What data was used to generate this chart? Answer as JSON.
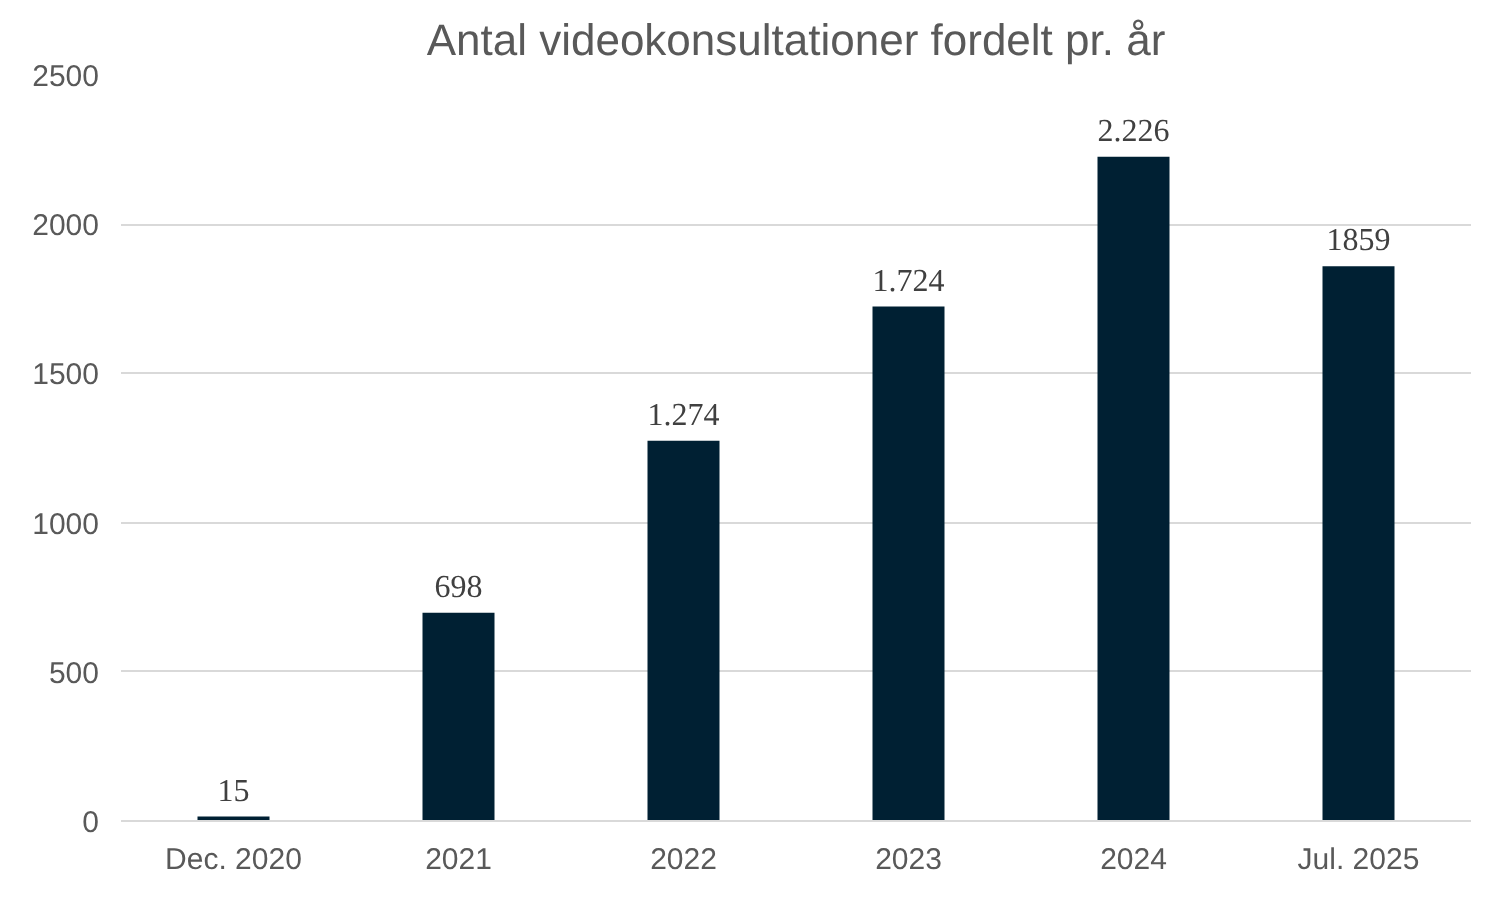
{
  "chart_data": {
    "type": "bar",
    "title": "Antal videokonsultationer fordelt pr. år",
    "categories": [
      "Dec. 2020",
      "2021",
      "2022",
      "2023",
      "2024",
      "Jul. 2025"
    ],
    "values": [
      15,
      698,
      1274,
      1724,
      2226,
      1859
    ],
    "value_labels": [
      "15",
      "698",
      "1.274",
      "1.724",
      "2.226",
      "1859"
    ],
    "color": "#002033",
    "ylim": [
      0,
      2500
    ],
    "yticks": [
      0,
      500,
      1000,
      1500,
      2000,
      2500
    ],
    "grid": "y"
  }
}
